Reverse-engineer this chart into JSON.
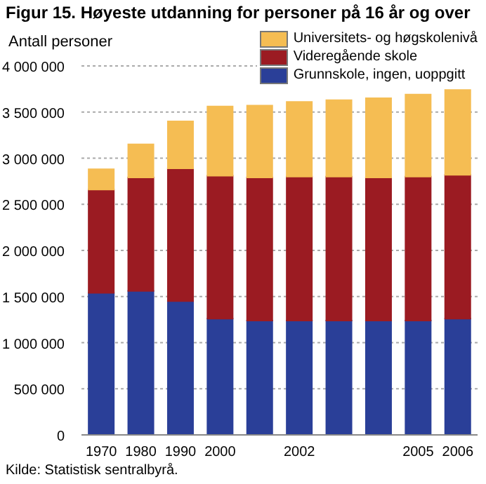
{
  "chart_data": {
    "type": "bar",
    "title": "Figur 15. Høyeste utdanning for personer på 16 år og over",
    "ylabel": "Antall personer",
    "annotations": [
      "Kilde: Statistisk sentralbyrå."
    ],
    "categories": [
      "1970",
      "1980",
      "1990",
      "2000",
      null,
      "2002",
      null,
      null,
      "2005",
      "2006"
    ],
    "stacked": true,
    "legend": "top right",
    "grid": "y",
    "ylim": [
      0,
      4000000
    ],
    "yticks": [
      0,
      {
        "value": 500000,
        "label": "500 000"
      },
      {
        "value": 1000000,
        "label": "1 000 000"
      },
      {
        "value": 1500000,
        "label": "1 500 000"
      },
      {
        "value": 2000000,
        "label": "2 000 000"
      },
      {
        "value": 2500000,
        "label": "2 500 000"
      },
      {
        "value": 3000000,
        "label": "3 000 000"
      },
      {
        "value": 3500000,
        "label": "3 500 000"
      },
      {
        "value": 4000000,
        "label": "4 000 000"
      }
    ],
    "series": [
      {
        "name": "Grunnskole, ingen, uoppgitt",
        "color": "#2a3f98",
        "values": [
          1540000,
          1560000,
          1450000,
          1260000,
          1240000,
          1240000,
          1240000,
          1240000,
          1240000,
          1260000
        ]
      },
      {
        "name": "Videregående skole",
        "color": "#9b1b22",
        "values": [
          1120000,
          1230000,
          1440000,
          1550000,
          1550000,
          1560000,
          1560000,
          1550000,
          1560000,
          1560000
        ]
      },
      {
        "name": "Universitets- og høgskolenivå",
        "color": "#f5bd53",
        "values": [
          220000,
          360000,
          510000,
          750000,
          780000,
          810000,
          830000,
          860000,
          890000,
          920000
        ]
      }
    ]
  }
}
